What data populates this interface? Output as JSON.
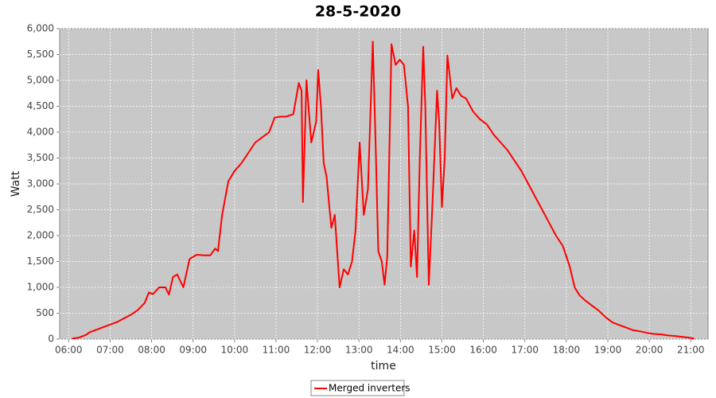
{
  "chart_data": {
    "type": "line",
    "title": "28-5-2020",
    "x_label": "time",
    "y_label": "Watt",
    "x": [
      "06:05",
      "06:15",
      "06:25",
      "06:30",
      "06:40",
      "06:50",
      "07:00",
      "07:10",
      "07:20",
      "07:30",
      "07:40",
      "07:50",
      "07:56",
      "08:02",
      "08:11",
      "08:20",
      "08:25",
      "08:31",
      "08:37",
      "08:46",
      "08:55",
      "09:05",
      "09:15",
      "09:25",
      "09:32",
      "09:36",
      "09:42",
      "09:51",
      "10:00",
      "10:10",
      "10:20",
      "10:30",
      "10:40",
      "10:50",
      "10:58",
      "11:06",
      "11:15",
      "11:25",
      "11:33",
      "11:37",
      "11:39",
      "11:44",
      "11:51",
      "11:58",
      "12:01",
      "12:05",
      "12:09",
      "12:13",
      "12:20",
      "12:25",
      "12:32",
      "12:38",
      "12:44",
      "12:50",
      "12:55",
      "13:01",
      "13:07",
      "13:13",
      "13:20",
      "13:24",
      "13:28",
      "13:33",
      "13:37",
      "13:41",
      "13:47",
      "13:53",
      "13:59",
      "14:05",
      "14:11",
      "14:15",
      "14:20",
      "14:24",
      "14:28",
      "14:33",
      "14:36",
      "14:41",
      "14:46",
      "14:53",
      "14:56",
      "15:00",
      "15:04",
      "15:08",
      "15:15",
      "15:21",
      "15:28",
      "15:35",
      "15:45",
      "15:55",
      "16:05",
      "16:15",
      "16:25",
      "16:35",
      "16:45",
      "16:55",
      "17:05",
      "17:15",
      "17:25",
      "17:35",
      "17:45",
      "17:55",
      "18:05",
      "18:12",
      "18:19",
      "18:27",
      "18:37",
      "18:47",
      "18:57",
      "19:07",
      "19:17",
      "19:27",
      "19:37",
      "19:47",
      "19:57",
      "20:07",
      "20:17",
      "20:27",
      "20:37",
      "20:47",
      "20:57",
      "21:05"
    ],
    "series": [
      {
        "name": "Merged inverters",
        "color": "#ff0000",
        "values": [
          10,
          30,
          80,
          130,
          180,
          230,
          280,
          330,
          400,
          470,
          560,
          700,
          900,
          870,
          1000,
          1000,
          860,
          1200,
          1250,
          1000,
          1550,
          1630,
          1620,
          1620,
          1750,
          1700,
          2400,
          3050,
          3250,
          3400,
          3600,
          3800,
          3900,
          4000,
          4280,
          4300,
          4300,
          4350,
          4950,
          4800,
          2650,
          5000,
          3800,
          4200,
          5200,
          4500,
          3400,
          3150,
          2150,
          2400,
          1000,
          1350,
          1250,
          1500,
          2100,
          3800,
          2400,
          2900,
          5750,
          3800,
          1700,
          1500,
          1050,
          1600,
          5700,
          5300,
          5400,
          5300,
          4500,
          1400,
          2100,
          1200,
          3500,
          5650,
          4500,
          1050,
          2500,
          4800,
          4200,
          2550,
          3500,
          5480,
          4650,
          4850,
          4700,
          4650,
          4400,
          4250,
          4150,
          3950,
          3800,
          3650,
          3450,
          3250,
          3000,
          2750,
          2500,
          2250,
          2000,
          1800,
          1400,
          1000,
          850,
          750,
          650,
          550,
          420,
          320,
          270,
          220,
          170,
          150,
          120,
          100,
          90,
          70,
          60,
          45,
          30,
          10
        ]
      }
    ],
    "xlim": [
      "05:47",
      "21:25"
    ],
    "xticks": [
      "06:00",
      "07:00",
      "08:00",
      "09:00",
      "10:00",
      "11:00",
      "12:00",
      "13:00",
      "14:00",
      "15:00",
      "16:00",
      "17:00",
      "18:00",
      "19:00",
      "20:00",
      "21:00"
    ],
    "ylim": [
      0,
      6000
    ],
    "yticks": [
      0,
      500,
      {
        "value": 1000,
        "label": "1,000"
      },
      {
        "value": 1500,
        "label": "1,500"
      },
      {
        "value": 2000,
        "label": "2,000"
      },
      {
        "value": 2500,
        "label": "2,500"
      },
      {
        "value": 3000,
        "label": "3,000"
      },
      {
        "value": 3500,
        "label": "3,500"
      },
      {
        "value": 4000,
        "label": "4,000"
      },
      {
        "value": 4500,
        "label": "4,500"
      },
      {
        "value": 5000,
        "label": "5,000"
      },
      {
        "value": 5500,
        "label": "5,500"
      },
      {
        "value": 6000,
        "label": "6,000"
      }
    ],
    "grid": true
  }
}
